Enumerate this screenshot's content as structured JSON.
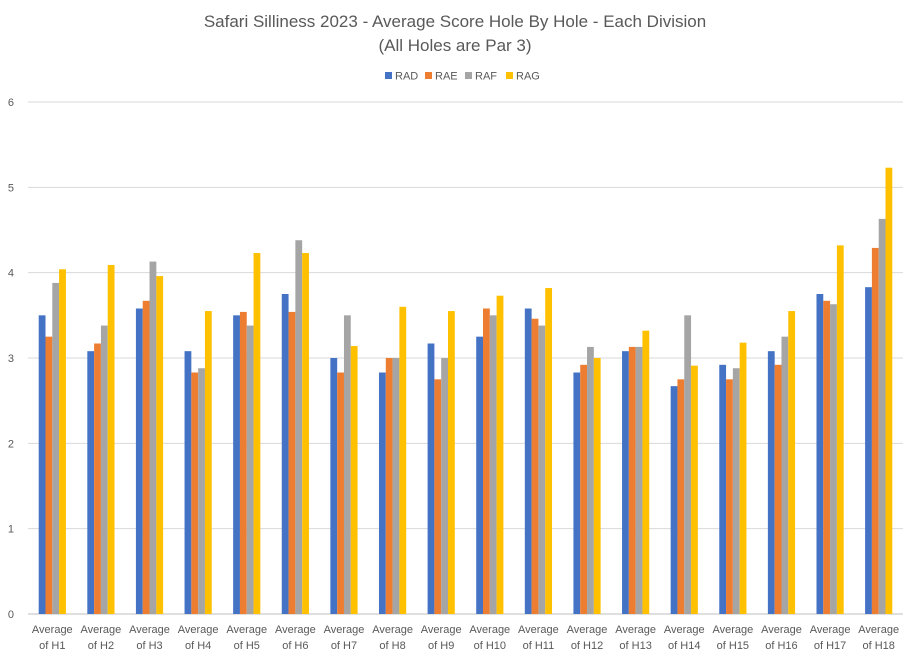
{
  "chart_data": {
    "type": "bar",
    "title": "Safari Silliness 2023 - Average Score Hole By Hole - Each Division",
    "subtitle": "(All Holes are Par 3)",
    "xlabel": "",
    "ylabel": "",
    "ylim": [
      0,
      6
    ],
    "yticks": [
      0,
      1,
      2,
      3,
      4,
      5,
      6
    ],
    "grid": true,
    "legend_position": "top-center",
    "categories": [
      [
        "Average",
        "of H1"
      ],
      [
        "Average",
        "of H2"
      ],
      [
        "Average",
        "of H3"
      ],
      [
        "Average",
        "of H4"
      ],
      [
        "Average",
        "of H5"
      ],
      [
        "Average",
        "of H6"
      ],
      [
        "Average",
        "of H7"
      ],
      [
        "Average",
        "of H8"
      ],
      [
        "Average",
        "of H9"
      ],
      [
        "Average",
        "of H10"
      ],
      [
        "Average",
        "of H11"
      ],
      [
        "Average",
        "of H12"
      ],
      [
        "Average",
        "of H13"
      ],
      [
        "Average",
        "of H14"
      ],
      [
        "Average",
        "of H15"
      ],
      [
        "Average",
        "of H16"
      ],
      [
        "Average",
        "of H17"
      ],
      [
        "Average",
        "of H18"
      ]
    ],
    "series": [
      {
        "name": "RAD",
        "color": "#4472C4",
        "values": [
          3.5,
          3.08,
          3.58,
          3.08,
          3.5,
          3.75,
          3.0,
          2.83,
          3.17,
          3.25,
          3.58,
          2.83,
          3.08,
          2.67,
          2.92,
          3.08,
          3.75,
          3.83
        ]
      },
      {
        "name": "RAE",
        "color": "#ED7D31",
        "values": [
          3.25,
          3.17,
          3.67,
          2.83,
          3.54,
          3.54,
          2.83,
          3.0,
          2.75,
          3.58,
          3.46,
          2.92,
          3.13,
          2.75,
          2.75,
          2.92,
          3.67,
          4.29
        ]
      },
      {
        "name": "RAF",
        "color": "#A5A5A5",
        "values": [
          3.88,
          3.38,
          4.13,
          2.88,
          3.38,
          4.38,
          3.5,
          3.0,
          3.0,
          3.5,
          3.38,
          3.13,
          3.13,
          3.5,
          2.88,
          3.25,
          3.63,
          4.63
        ]
      },
      {
        "name": "RAG",
        "color": "#FFC000",
        "values": [
          4.04,
          4.09,
          3.96,
          3.55,
          4.23,
          4.23,
          3.14,
          3.6,
          3.55,
          3.73,
          3.82,
          3.0,
          3.32,
          2.91,
          3.18,
          3.55,
          4.32,
          5.23
        ]
      }
    ]
  }
}
